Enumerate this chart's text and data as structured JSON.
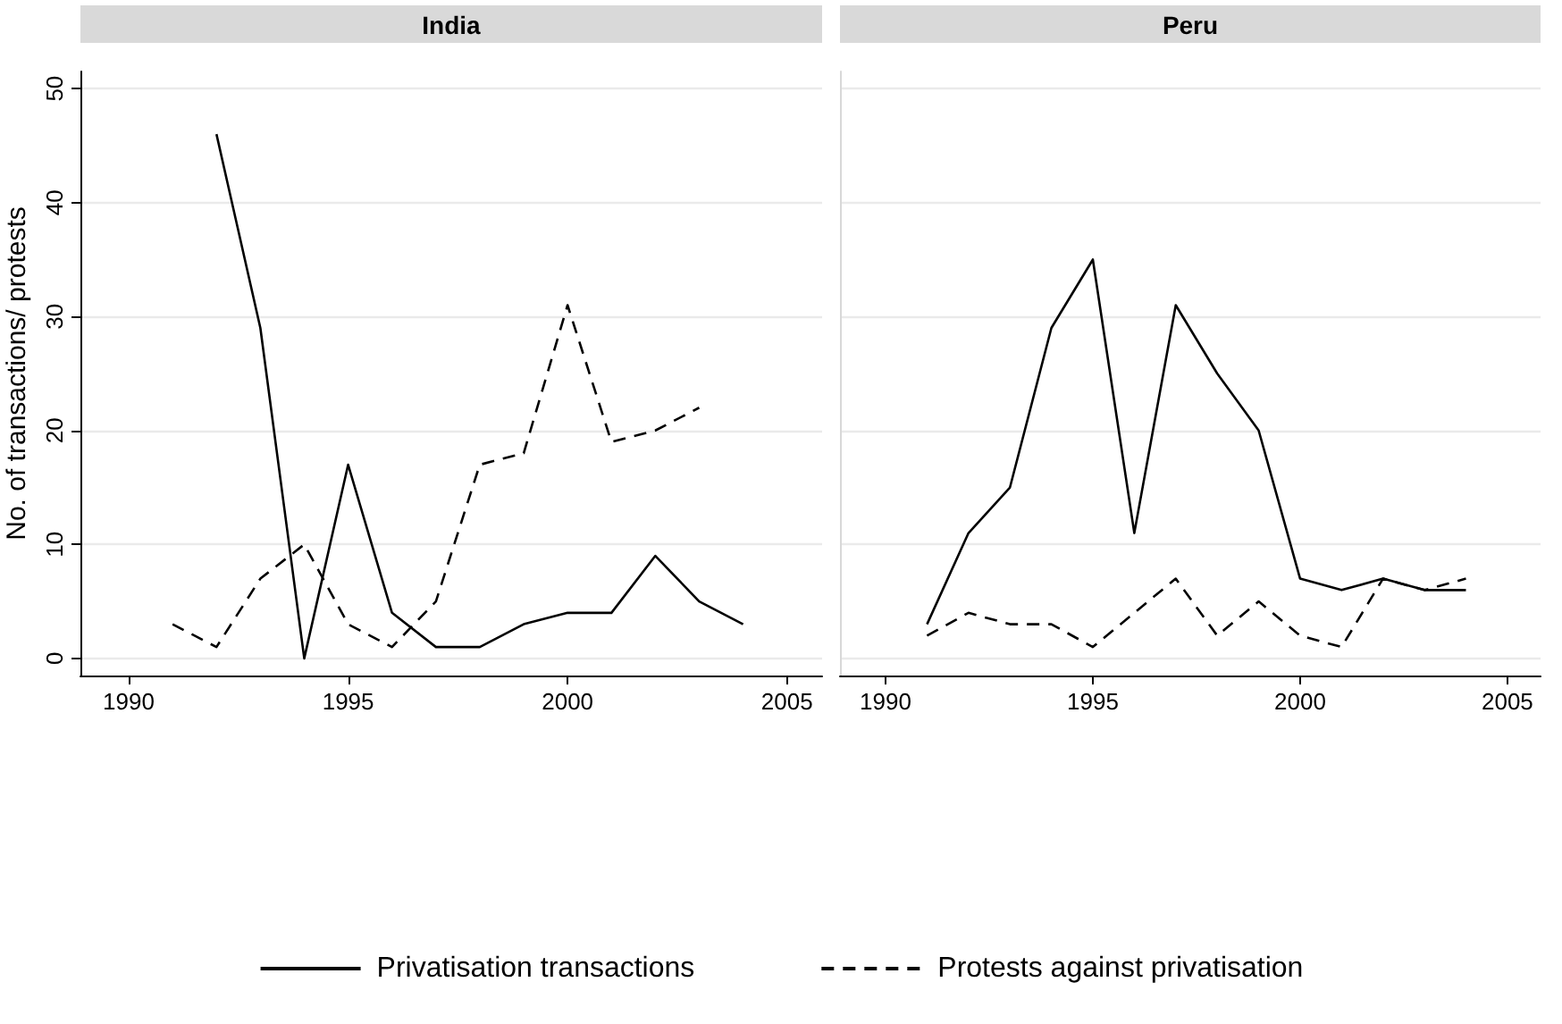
{
  "chart_data": [
    {
      "type": "line",
      "title": "India",
      "ylabel": "No. of transactions/ protests",
      "xlim": [
        1988.9,
        2005.8
      ],
      "xticks": [
        1990,
        1995,
        2000,
        2005
      ],
      "ylim": [
        -1.5,
        51.5
      ],
      "yticks": [
        0,
        10,
        20,
        30,
        40,
        50
      ],
      "grid": "y",
      "legend": "bottom",
      "marker": "none",
      "series": [
        {
          "name": "Privatisation transactions",
          "color": "#000000",
          "line_style": "solid",
          "x": [
            1992,
            1993,
            1994,
            1995,
            1996,
            1997,
            1998,
            1999,
            2000,
            2001,
            2002,
            2003,
            2004
          ],
          "values": [
            46,
            29,
            0,
            17,
            4,
            1,
            1,
            3,
            4,
            4,
            9,
            5,
            3
          ]
        },
        {
          "name": "Protests against privatisation",
          "color": "#000000",
          "line_style": "dashed",
          "x": [
            1991,
            1992,
            1993,
            1994,
            1995,
            1996,
            1997,
            1998,
            1999,
            2000,
            2001,
            2002,
            2003
          ],
          "values": [
            3,
            1,
            7,
            10,
            3,
            1,
            5,
            17,
            18,
            31,
            19,
            20,
            22
          ]
        }
      ]
    },
    {
      "type": "line",
      "title": "Peru",
      "xlim": [
        1988.9,
        2005.8
      ],
      "xticks": [
        1990,
        1995,
        2000,
        2005
      ],
      "ylim": [
        -1.5,
        51.5
      ],
      "yticks": [
        0,
        10,
        20,
        30,
        40,
        50
      ],
      "grid": "y",
      "tick_labels": "x",
      "marker": "none",
      "series": [
        {
          "color": "#000000",
          "line_style": "solid",
          "x": [
            1991,
            1992,
            1993,
            1994,
            1995,
            1996,
            1997,
            1998,
            1999,
            2000,
            2001,
            2002,
            2003,
            2004
          ],
          "values": [
            3,
            11,
            15,
            29,
            35,
            11,
            31,
            25,
            20,
            7,
            6,
            7,
            6,
            6
          ]
        },
        {
          "color": "#000000",
          "line_style": "dashed",
          "x": [
            1991,
            1992,
            1993,
            1994,
            1995,
            1996,
            1997,
            1998,
            1999,
            2000,
            2001,
            2002,
            2003,
            2004
          ],
          "values": [
            2,
            4,
            3,
            3,
            1,
            4,
            7,
            2,
            5,
            2,
            1,
            7,
            6,
            7
          ]
        }
      ]
    }
  ]
}
